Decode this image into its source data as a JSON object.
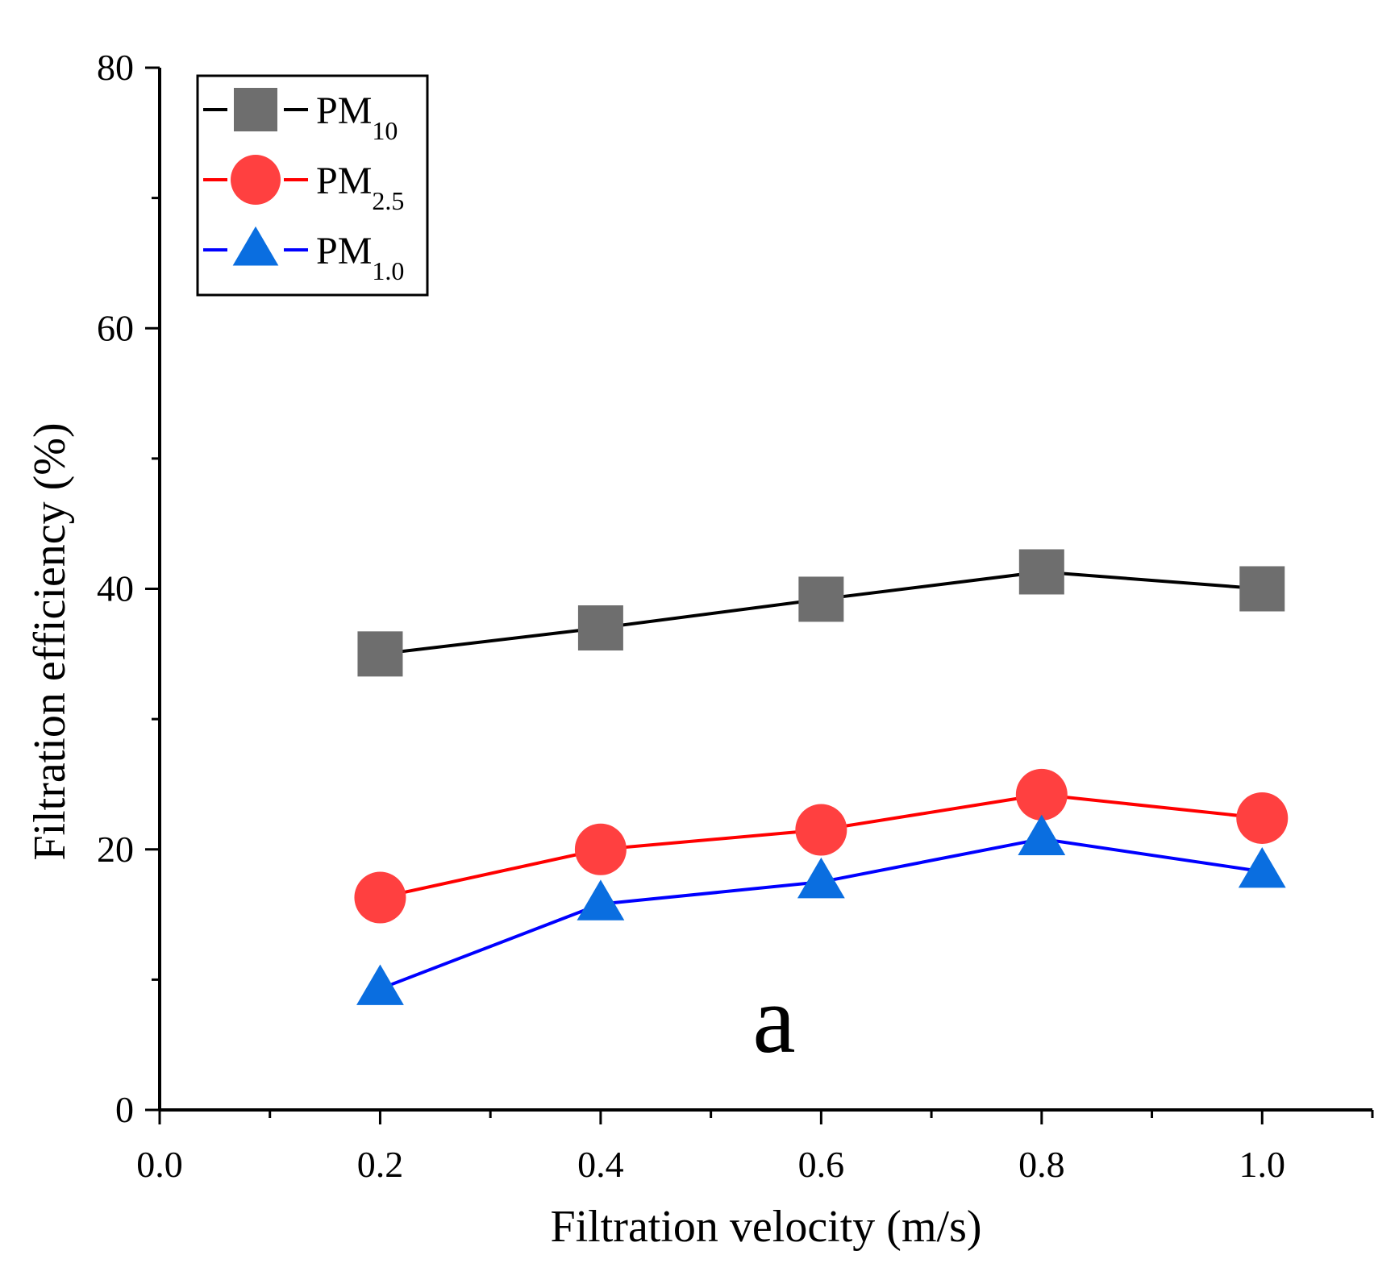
{
  "chart_data": {
    "type": "line",
    "title": "",
    "xlabel": "Filtration velocity (m/s)",
    "ylabel": "Filtration efficiency (%)",
    "xlim": [
      0.0,
      1.1
    ],
    "ylim": [
      0,
      80
    ],
    "x": [
      0.2,
      0.4,
      0.6,
      0.8,
      1.0
    ],
    "x_ticks": [
      "0.0",
      "0.2",
      "0.4",
      "0.6",
      "0.8",
      "1.0"
    ],
    "y_ticks": [
      "0",
      "20",
      "40",
      "60",
      "80"
    ],
    "grid": false,
    "legend_position": "top-left",
    "annotation": "a",
    "series": [
      {
        "name_main": "PM",
        "name_sub": "10",
        "marker": "square",
        "color": "#000000",
        "marker_color": "#6e6e6e",
        "values": [
          35.0,
          37.0,
          39.2,
          41.3,
          40.0
        ]
      },
      {
        "name_main": "PM",
        "name_sub": "2.5",
        "marker": "circle",
        "color": "#ff0000",
        "marker_color": "#ff4040",
        "values": [
          16.3,
          20.0,
          21.5,
          24.2,
          22.4
        ]
      },
      {
        "name_main": "PM",
        "name_sub": "1.0",
        "marker": "triangle",
        "color": "#0000ff",
        "marker_color": "#0a6ee0",
        "values": [
          9.3,
          15.8,
          17.5,
          20.8,
          18.3
        ]
      }
    ]
  }
}
